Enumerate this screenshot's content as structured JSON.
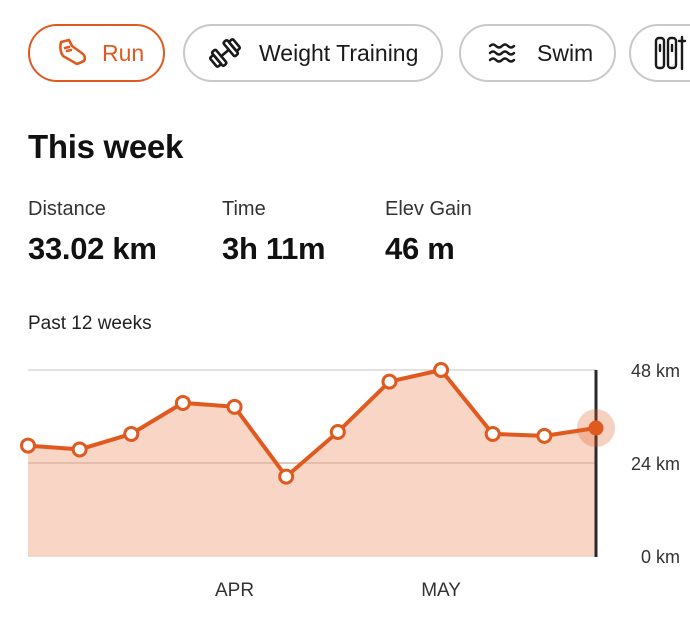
{
  "tabs": [
    {
      "label": "Run",
      "icon": "shoe-icon",
      "active": true
    },
    {
      "label": "Weight Training",
      "icon": "dumbbell-icon",
      "active": false
    },
    {
      "label": "Swim",
      "icon": "waves-icon",
      "active": false
    },
    {
      "label": "",
      "icon": "ski-icon",
      "active": false
    }
  ],
  "summary": {
    "title": "This week",
    "stats": [
      {
        "label": "Distance",
        "value": "33.02 km"
      },
      {
        "label": "Time",
        "value": "3h 11m"
      },
      {
        "label": "Elev Gain",
        "value": "46 m"
      }
    ]
  },
  "chart_caption": "Past 12 weeks",
  "colors": {
    "accent": "#e05a1f",
    "fill": "#f8d5c4",
    "chip_border": "#c9c9c9"
  },
  "chart_data": {
    "type": "area",
    "title": "",
    "xlabel": "",
    "ylabel": "",
    "ylim": [
      0,
      48
    ],
    "y_ticks": [
      "48 km",
      "24 km",
      "0 km"
    ],
    "y_tick_values": [
      48,
      24,
      0
    ],
    "x_tick_labels": [
      {
        "label": "APR",
        "index": 4
      },
      {
        "label": "MAY",
        "index": 8
      }
    ],
    "series": [
      {
        "values": [
          28.5,
          27.5,
          31.5,
          39.5,
          38.5,
          20.5,
          32,
          45,
          48,
          31.5,
          31,
          33.02
        ]
      }
    ],
    "highlight_index": 11,
    "grid": true
  }
}
